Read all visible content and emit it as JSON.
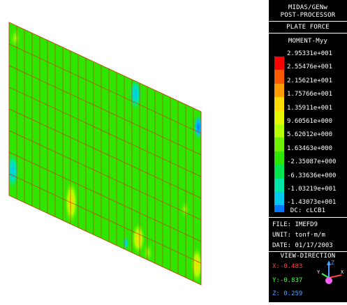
{
  "panel": {
    "program": "MIDAS/GENw",
    "module": "POST-PROCESSOR",
    "result_type": "PLATE FORCE",
    "component": "MOMENT-Myy",
    "legend": [
      {
        "label": "2.95331e+001",
        "color": "#ff0000"
      },
      {
        "label": "2.55476e+001",
        "color": "#ff5a00"
      },
      {
        "label": "2.15621e+001",
        "color": "#ff9c00"
      },
      {
        "label": "1.75766e+001",
        "color": "#ffdc00"
      },
      {
        "label": "1.35911e+001",
        "color": "#e6f500"
      },
      {
        "label": "9.60561e+000",
        "color": "#b4ff00"
      },
      {
        "label": "5.62012e+000",
        "color": "#6ef000"
      },
      {
        "label": "1.63463e+000",
        "color": "#2ee600"
      },
      {
        "label": "-2.35087e+000",
        "color": "#00e650"
      },
      {
        "label": "-6.33636e+000",
        "color": "#00e6aa"
      },
      {
        "label": "-1.03219e+001",
        "color": "#00c8f0"
      },
      {
        "label": "-1.43073e+001",
        "color": "#0078ff"
      }
    ],
    "dc": "DC: cLCB1",
    "file": "FILE: IMEFD9",
    "unit": "UNIT: tonf·m/m",
    "date": "DATE: 01/17/2003",
    "view_title": "VIEW-DIRECTION",
    "view_x": "X:-0.483",
    "view_y": "Y:-0.837",
    "view_z": "Z: 0.259",
    "colors": {
      "x": "#ff4040",
      "y": "#40ff40",
      "z": "#4aa0ff"
    }
  },
  "model": {
    "plate_color": "#2ee600",
    "grid_color": "#c04000"
  }
}
